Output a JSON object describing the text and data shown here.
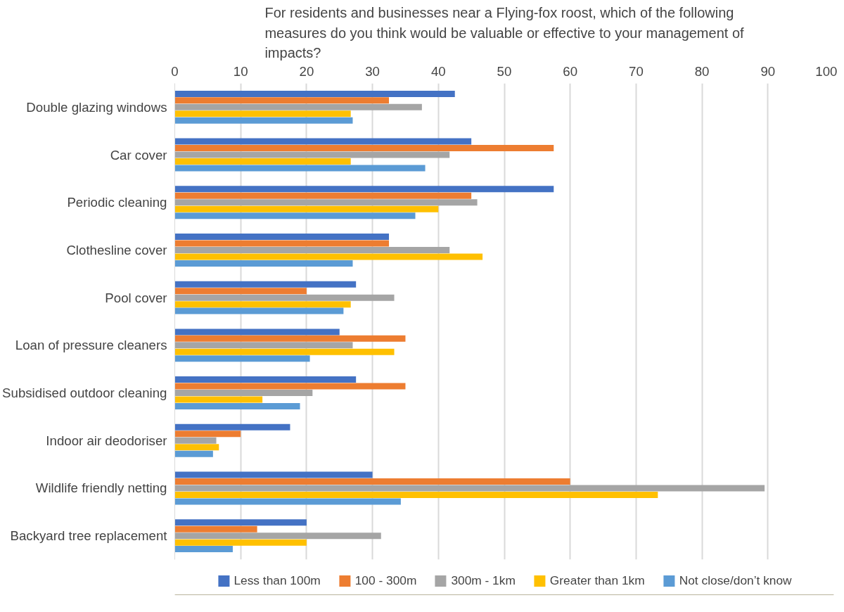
{
  "chart_data": {
    "type": "bar",
    "orientation": "horizontal",
    "title": "For residents and businesses near a Flying-fox roost, which of the following measures do you think would be valuable or effective to your management of impacts?",
    "categories": [
      "Double glazing windows",
      "Car cover",
      "Periodic cleaning",
      "Clothesline cover",
      "Pool cover",
      "Loan of pressure cleaners",
      "Subsidised outdoor cleaning",
      "Indoor air deodoriser",
      "Wildlife friendly netting",
      "Backyard tree replacement"
    ],
    "series": [
      {
        "name": "Less than 100m",
        "color": "#4472c4",
        "values": [
          42.5,
          45,
          57.5,
          32.5,
          27.5,
          25,
          27.5,
          17.5,
          30,
          20
        ]
      },
      {
        "name": "100 - 300m",
        "color": "#ed7d31",
        "values": [
          32.5,
          57.5,
          45,
          32.5,
          20,
          35,
          35,
          10,
          60,
          12.5
        ]
      },
      {
        "name": "300m - 1km",
        "color": "#a5a5a5",
        "values": [
          37.5,
          41.7,
          45.9,
          41.7,
          33.3,
          27,
          20.9,
          6.3,
          89.5,
          31.3
        ]
      },
      {
        "name": "Greater than 1km",
        "color": "#ffc000",
        "values": [
          26.7,
          26.7,
          40,
          46.7,
          26.7,
          33.3,
          13.3,
          6.7,
          73.3,
          20
        ]
      },
      {
        "name": "Not close/don’t know",
        "color": "#5b9bd5",
        "values": [
          27,
          38,
          36.5,
          27,
          25.6,
          20.5,
          19,
          5.8,
          34.3,
          8.8
        ]
      }
    ],
    "xlim": [
      0,
      100
    ],
    "xticks": [
      0,
      10,
      20,
      30,
      40,
      50,
      60,
      70,
      80,
      90,
      100
    ],
    "grid": "x",
    "legend": "bottom"
  }
}
